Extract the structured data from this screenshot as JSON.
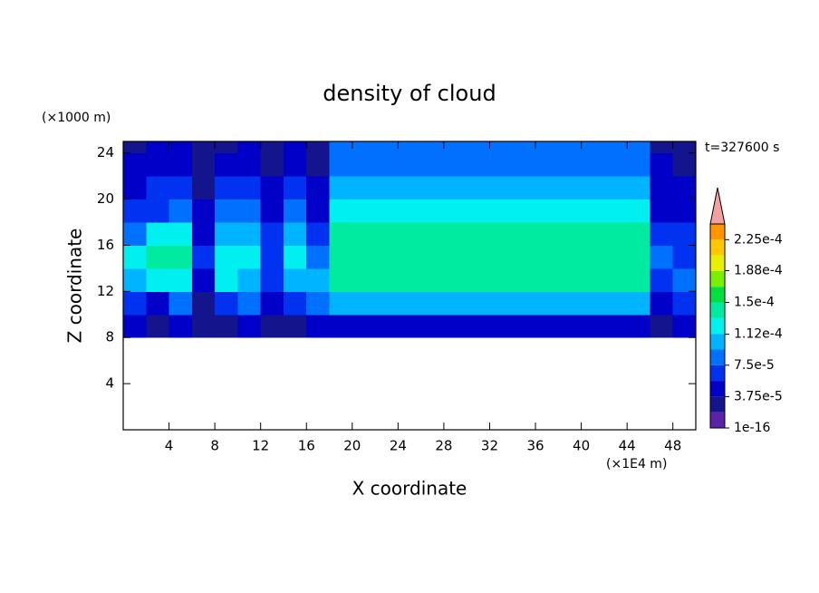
{
  "chart_data": {
    "type": "contour",
    "title": "density of cloud",
    "x_label": "X coordinate",
    "y_label": "Z coordinate",
    "x_unit": "(×1E4 m)",
    "y_unit": "(×1000 m)",
    "time_label": "t=327600 s",
    "xlim": [
      0,
      50
    ],
    "ylim": [
      0,
      25
    ],
    "xticks": [
      4,
      8,
      12,
      16,
      20,
      24,
      28,
      32,
      36,
      40,
      44,
      48
    ],
    "yticks": [
      4,
      8,
      12,
      16,
      20,
      24
    ],
    "xbins": [
      0,
      2,
      4,
      6,
      8,
      10,
      12,
      14,
      16,
      18,
      20,
      22,
      24,
      26,
      28,
      30,
      32,
      34,
      36,
      38,
      40,
      42,
      44,
      46,
      48,
      50
    ],
    "ybins": [
      0,
      2,
      4,
      6,
      8,
      10,
      12,
      14,
      16,
      18,
      20,
      22,
      24,
      25
    ],
    "levels": [
      0,
      1.875e-05,
      3.75e-05,
      5.625e-05,
      7.5e-05,
      9.375e-05,
      0.0001125,
      0.00013125,
      0.00015,
      0.00016875,
      0.0001875,
      0.00020625,
      0.000225,
      0.00024375
    ],
    "colors": [
      "#5a22a8",
      "#14148c",
      "#0000c8",
      "#0032f0",
      "#0070ff",
      "#00b4ff",
      "#00f0f0",
      "#00eaa0",
      "#00e040",
      "#78f000",
      "#e6f000",
      "#ffc800",
      "#ff9600",
      "#ff5000",
      "#e80000"
    ],
    "extend_color": "#f4a0a0",
    "colorbar_ticks": [
      1e-16,
      {
        "value": 3.75e-05,
        "label": "3.75e-5"
      },
      {
        "value": 7.5e-05,
        "label": "7.5e-5"
      },
      {
        "value": 0.000112,
        "label": "1.12e-4"
      },
      {
        "value": 0.00015,
        "label": "1.5e-4"
      },
      {
        "value": 0.000188,
        "label": "1.88e-4"
      },
      {
        "value": 0.000225,
        "label": "2.25e-4"
      }
    ],
    "z": [
      [
        null,
        null,
        null,
        null,
        null,
        null,
        null,
        null,
        null,
        null,
        null,
        null,
        null,
        null,
        null,
        null,
        null,
        null,
        null,
        null,
        null,
        null,
        null,
        null,
        null
      ],
      [
        null,
        null,
        null,
        null,
        null,
        null,
        null,
        null,
        null,
        null,
        null,
        null,
        null,
        null,
        null,
        null,
        null,
        null,
        null,
        null,
        null,
        null,
        null,
        null,
        null
      ],
      [
        null,
        null,
        null,
        null,
        null,
        null,
        null,
        null,
        null,
        null,
        null,
        null,
        null,
        null,
        null,
        null,
        null,
        null,
        null,
        null,
        null,
        null,
        null,
        null,
        null
      ],
      [
        null,
        null,
        null,
        null,
        null,
        null,
        null,
        null,
        null,
        null,
        null,
        null,
        null,
        null,
        null,
        null,
        null,
        null,
        null,
        null,
        null,
        null,
        null,
        null,
        null
      ],
      [
        4e-05,
        2e-05,
        4e-05,
        2e-05,
        3e-05,
        5e-05,
        2e-05,
        3e-05,
        4e-05,
        5e-05,
        5e-05,
        5e-05,
        5e-05,
        5e-05,
        5e-05,
        5e-05,
        5e-05,
        5e-05,
        5e-05,
        5e-05,
        5e-05,
        5e-05,
        5e-05,
        3e-05,
        5e-05
      ],
      [
        6e-05,
        5e-05,
        9e-05,
        3e-05,
        7e-05,
        9e-05,
        4e-05,
        6e-05,
        8e-05,
        9.5e-05,
        9.5e-05,
        9.5e-05,
        9.5e-05,
        9.5e-05,
        9.5e-05,
        9.5e-05,
        9.5e-05,
        9.5e-05,
        9.5e-05,
        9.5e-05,
        9.5e-05,
        9.5e-05,
        9.5e-05,
        4e-05,
        6e-05
      ],
      [
        0.00011,
        0.00012,
        0.00013,
        5e-05,
        0.00012,
        0.00011,
        6e-05,
        0.0001,
        0.0001,
        0.000135,
        0.000135,
        0.000135,
        0.000135,
        0.000135,
        0.000135,
        0.000135,
        0.000135,
        0.000135,
        0.000135,
        0.000135,
        0.000135,
        0.000135,
        0.000135,
        7e-05,
        8e-05
      ],
      [
        0.00013,
        0.00014,
        0.00014,
        6e-05,
        0.00013,
        0.00012,
        7e-05,
        0.00012,
        9e-05,
        0.000145,
        0.000145,
        0.000145,
        0.000145,
        0.000145,
        0.000145,
        0.000145,
        0.000145,
        0.000145,
        0.000145,
        0.000145,
        0.000145,
        0.000145,
        0.000145,
        8e-05,
        7e-05
      ],
      [
        9e-05,
        0.00012,
        0.00013,
        5e-05,
        0.00011,
        0.0001,
        6e-05,
        0.00011,
        7e-05,
        0.000142,
        0.000142,
        0.000142,
        0.000142,
        0.000142,
        0.000142,
        0.000142,
        0.000142,
        0.000142,
        0.000142,
        0.000142,
        0.000142,
        0.000142,
        0.000142,
        7e-05,
        6e-05
      ],
      [
        6e-05,
        7e-05,
        9e-05,
        4e-05,
        8e-05,
        9e-05,
        5e-05,
        9e-05,
        5e-05,
        0.000125,
        0.000125,
        0.000125,
        0.000125,
        0.000125,
        0.000125,
        0.000125,
        0.000125,
        0.000125,
        0.000125,
        0.000125,
        0.000125,
        0.000125,
        0.000125,
        5e-05,
        5e-05
      ],
      [
        5e-05,
        6e-05,
        7e-05,
        3e-05,
        6e-05,
        7e-05,
        4e-05,
        7e-05,
        4e-05,
        0.000105,
        0.000105,
        0.000105,
        0.000105,
        0.000105,
        0.000105,
        0.000105,
        0.000105,
        0.000105,
        0.000105,
        0.000105,
        0.000105,
        0.000105,
        0.000105,
        4e-05,
        4e-05
      ],
      [
        4e-05,
        5e-05,
        5e-05,
        3e-05,
        4e-05,
        5e-05,
        3e-05,
        5e-05,
        3e-05,
        9e-05,
        9e-05,
        9e-05,
        9e-05,
        9e-05,
        9e-05,
        9e-05,
        9e-05,
        9e-05,
        9e-05,
        9e-05,
        9e-05,
        9e-05,
        9e-05,
        4e-05,
        3e-05
      ],
      [
        3e-05,
        4e-05,
        4e-05,
        2e-05,
        3e-05,
        4e-05,
        2e-05,
        4e-05,
        3e-05,
        8.5e-05,
        8.5e-05,
        8.5e-05,
        8.5e-05,
        8.5e-05,
        8.5e-05,
        8.5e-05,
        8.5e-05,
        8.5e-05,
        8.5e-05,
        8.5e-05,
        8.5e-05,
        8.5e-05,
        8.5e-05,
        3e-05,
        3e-05
      ]
    ]
  }
}
